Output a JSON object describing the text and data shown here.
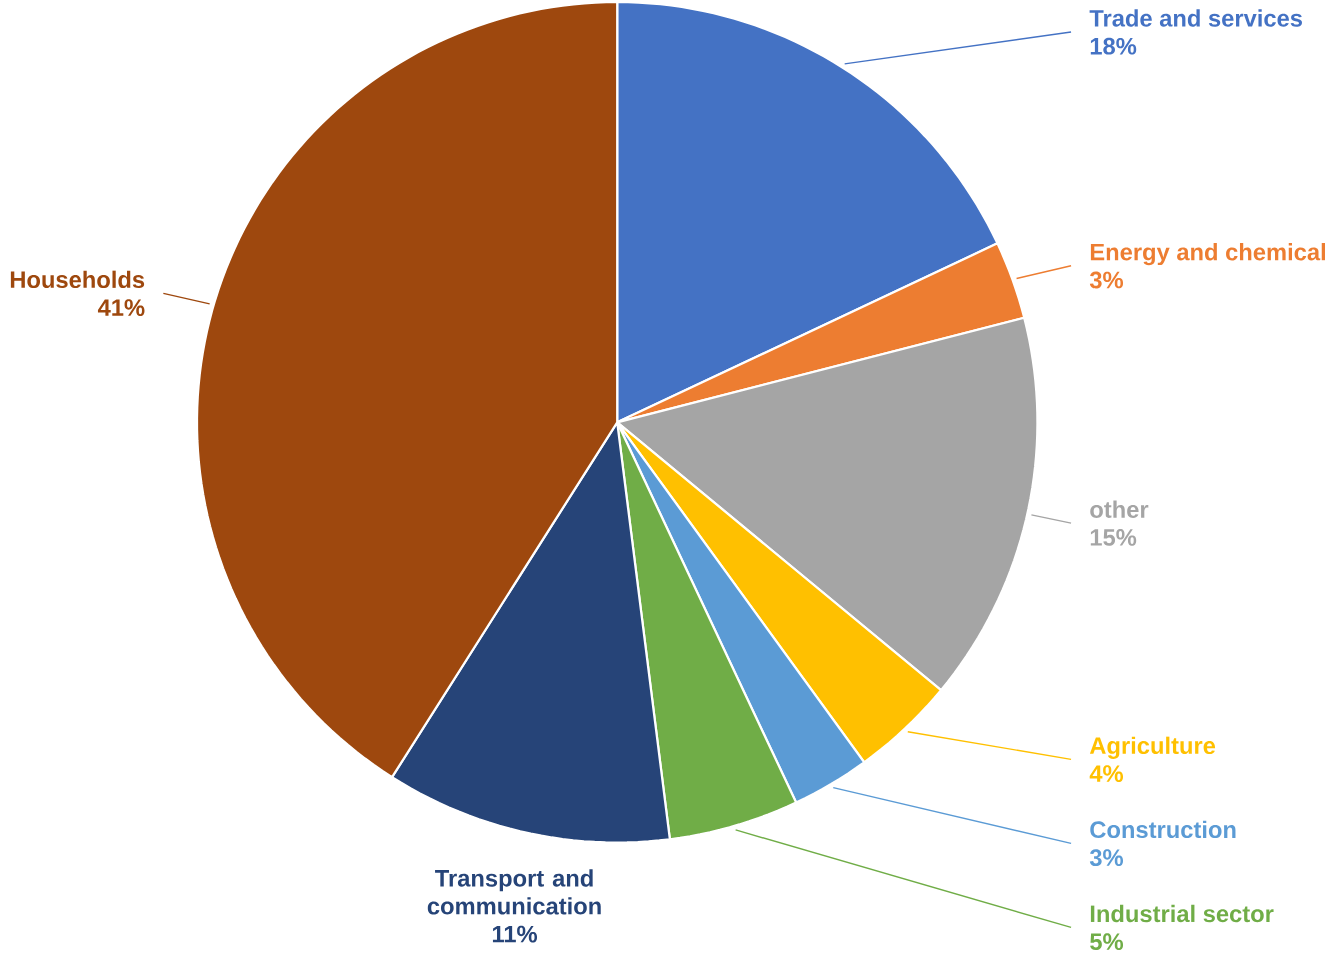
{
  "chart_data": {
    "type": "pie",
    "categories": [
      "Trade and services",
      "Energy and chemical",
      "other",
      "Agriculture",
      "Construction",
      "Industrial sector",
      "Transport and communication",
      "Households"
    ],
    "values": [
      18,
      3,
      15,
      4,
      3,
      5,
      11,
      41
    ],
    "value_labels": [
      "18%",
      "3%",
      "15%",
      "4%",
      "3%",
      "5%",
      "11%",
      "41%"
    ],
    "colors": [
      "#4472c4",
      "#ed7d31",
      "#a5a5a5",
      "#ffc000",
      "#5b9bd5",
      "#70ad47",
      "#264478",
      "#9e480e"
    ]
  }
}
